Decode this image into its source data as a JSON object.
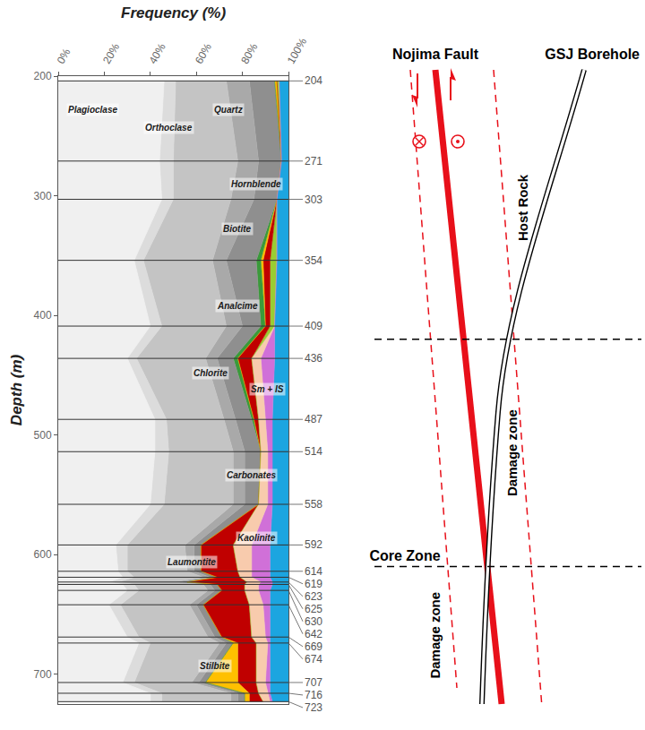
{
  "chart_data": {
    "type": "area",
    "stacked": true,
    "orientation": "horizontal",
    "grid": false,
    "xlabel": "Frequency (%)",
    "ylabel": "Depth (m)",
    "y": [
      204,
      271,
      303,
      354,
      409,
      436,
      487,
      514,
      558,
      592,
      614,
      619,
      623,
      625,
      630,
      642,
      669,
      674,
      707,
      716,
      723
    ],
    "series": [
      {
        "name": "Plagioclase",
        "color": "#f0f0f0",
        "values": [
          46,
          44,
          45,
          33,
          40,
          30,
          42,
          42,
          40,
          25,
          26,
          28,
          22,
          28,
          30,
          22,
          30,
          35,
          28,
          40,
          40
        ]
      },
      {
        "name": "Orthoclase",
        "color": "#dcdcdc",
        "values": [
          5,
          6,
          5,
          4,
          5,
          4,
          5,
          6,
          6,
          5,
          4,
          5,
          4,
          5,
          5,
          5,
          5,
          5,
          5,
          5,
          5
        ]
      },
      {
        "name": "Quartz",
        "color": "#c4c4c4",
        "values": [
          22,
          28,
          25,
          30,
          28,
          30,
          25,
          28,
          30,
          25,
          26,
          30,
          24,
          30,
          30,
          30,
          30,
          30,
          25,
          30,
          30
        ]
      },
      {
        "name": "Hornblende",
        "color": "#a9a9a9",
        "values": [
          10,
          9,
          10,
          6,
          7,
          5,
          5,
          5,
          5,
          4,
          3,
          3,
          3,
          3,
          3,
          3,
          3,
          3,
          3,
          3,
          3
        ]
      },
      {
        "name": "Biotite",
        "color": "#8f8f8f",
        "values": [
          11,
          10,
          10,
          13,
          8,
          7,
          7,
          7,
          6,
          3,
          3,
          3,
          3,
          3,
          3,
          3,
          3,
          3,
          3,
          3,
          3
        ]
      },
      {
        "name": "Chlorite",
        "color": "#3a9a3a",
        "values": [
          0,
          0,
          0,
          2,
          2,
          2,
          1,
          0,
          0,
          0,
          0,
          0,
          0,
          0,
          0,
          0,
          0,
          0,
          0,
          0,
          0
        ]
      },
      {
        "name": "Stilbite",
        "color": "#ffc000",
        "values": [
          1,
          0,
          0,
          1,
          0,
          0,
          0,
          0,
          0,
          0,
          0,
          0,
          0,
          0,
          0,
          0,
          0,
          2,
          14,
          2,
          2
        ]
      },
      {
        "name": "Laumontite",
        "color": "#c00000",
        "values": [
          0,
          0,
          0,
          3,
          2,
          6,
          2,
          0,
          0,
          14,
          16,
          10,
          26,
          12,
          10,
          20,
          13,
          8,
          8,
          4,
          6
        ]
      },
      {
        "name": "Analcime",
        "color": "#9acd32",
        "values": [
          1,
          0,
          0,
          3,
          2,
          0,
          0,
          0,
          0,
          0,
          0,
          0,
          0,
          0,
          0,
          0,
          0,
          0,
          0,
          0,
          0
        ]
      },
      {
        "name": "Carbonates",
        "color": "#f8cbad",
        "values": [
          0,
          0,
          0,
          0,
          0,
          4,
          3,
          3,
          4,
          8,
          6,
          5,
          6,
          6,
          6,
          6,
          6,
          5,
          4,
          4,
          3
        ]
      },
      {
        "name": "Kaolinite",
        "color": "#d070d8",
        "values": [
          0,
          0,
          0,
          0,
          0,
          6,
          3,
          2,
          2,
          8,
          8,
          8,
          5,
          6,
          5,
          3,
          2,
          1,
          2,
          1,
          1
        ]
      },
      {
        "name": "Sm + IS",
        "color": "#1ca5e0",
        "values": [
          4,
          3,
          5,
          5,
          6,
          6,
          7,
          7,
          7,
          8,
          8,
          8,
          7,
          7,
          8,
          8,
          8,
          8,
          8,
          8,
          7
        ]
      }
    ],
    "xlim": [
      0,
      100
    ],
    "xticks": [
      {
        "value": 0,
        "label": "0%"
      },
      {
        "value": 20,
        "label": "20%"
      },
      {
        "value": 40,
        "label": "40%"
      },
      {
        "value": 60,
        "label": "60%"
      },
      {
        "value": 80,
        "label": "80%"
      },
      {
        "value": 100,
        "label": "100%"
      }
    ],
    "ylim": [
      725,
      200
    ],
    "yticks": [
      200,
      300,
      400,
      500,
      600,
      700
    ]
  },
  "diagram": {
    "fault_label": "Nojima Fault",
    "borehole_label": "GSJ Borehole",
    "boundaries": [
      {
        "depth": 420
      },
      {
        "depth": 610,
        "label": "Core Zone"
      }
    ],
    "zone_labels": [
      "Host Rock",
      "Damage zone",
      "Damage zone"
    ]
  }
}
